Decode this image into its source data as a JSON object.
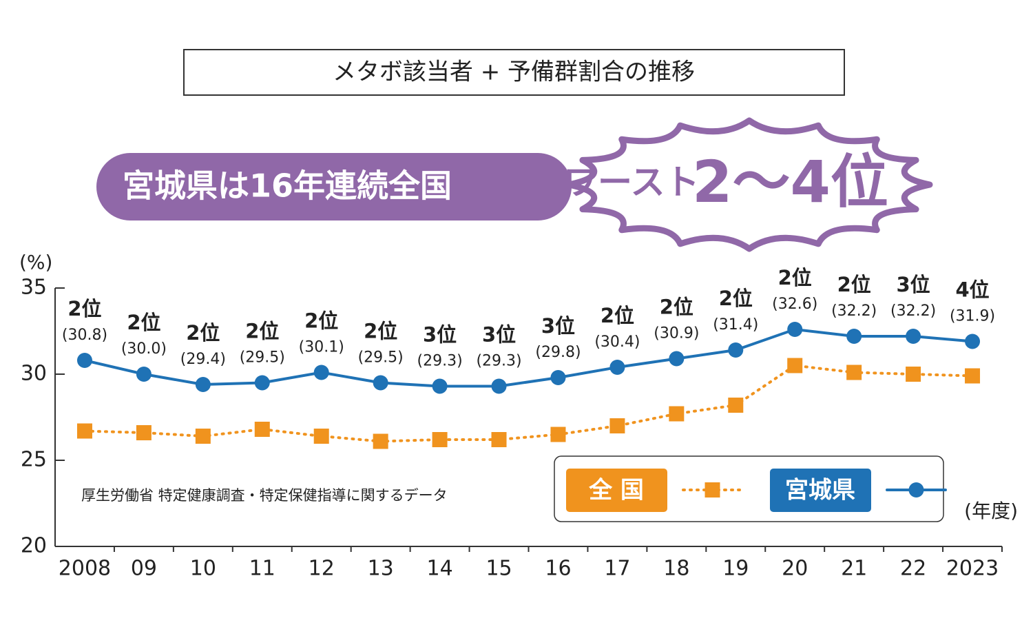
{
  "chart_data": {
    "type": "line",
    "title": "メタボ該当者 + 予備群割合の推移",
    "headline": "宮城県は16年連続全国",
    "headline_burst_prefix": "ワースト",
    "headline_burst_main": "2～4位",
    "y_label": "(%)",
    "x_label": "(年度)",
    "source": "厚生労働省 特定健康調査・特定保健指導に関するデータ",
    "categories": [
      "2008",
      "09",
      "10",
      "11",
      "12",
      "13",
      "14",
      "15",
      "16",
      "17",
      "18",
      "19",
      "20",
      "21",
      "22",
      "2023"
    ],
    "ylim": [
      20,
      35
    ],
    "yticks": [
      20,
      25,
      30,
      35
    ],
    "grid": false,
    "series": [
      {
        "name": "全 国",
        "color": "#f0931e",
        "marker": "square",
        "style": "dotted",
        "values": [
          26.7,
          26.6,
          26.4,
          26.8,
          26.4,
          26.1,
          26.2,
          26.2,
          26.5,
          27.0,
          27.7,
          28.2,
          30.5,
          30.1,
          30.0,
          29.9
        ]
      },
      {
        "name": "宮城県",
        "color": "#1f72b5",
        "marker": "circle",
        "style": "solid",
        "values": [
          30.8,
          30.0,
          29.4,
          29.5,
          30.1,
          29.5,
          29.3,
          29.3,
          29.8,
          30.4,
          30.9,
          31.4,
          32.6,
          32.2,
          32.2,
          31.9
        ],
        "value_labels": [
          "(30.8)",
          "(30.0)",
          "(29.4)",
          "(29.5)",
          "(30.1)",
          "(29.5)",
          "(29.3)",
          "(29.3)",
          "(29.8)",
          "(30.4)",
          "(30.9)",
          "(31.4)",
          "(32.6)",
          "(32.2)",
          "(32.2)",
          "(31.9)"
        ],
        "rank_labels": [
          "2位",
          "2位",
          "2位",
          "2位",
          "2位",
          "2位",
          "3位",
          "3位",
          "3位",
          "2位",
          "2位",
          "2位",
          "2位",
          "2位",
          "3位",
          "4位"
        ]
      }
    ]
  }
}
